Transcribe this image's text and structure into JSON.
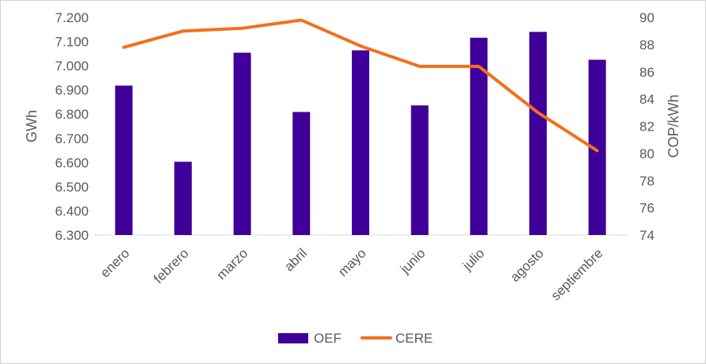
{
  "chart_data": {
    "type": "bar",
    "title": "",
    "categories": [
      "enero",
      "febrero",
      "marzo",
      "abril",
      "mayo",
      "junio",
      "julio",
      "agosto",
      "septiembre"
    ],
    "series": [
      {
        "name": "OEF",
        "type": "bar",
        "axis": "left",
        "color": "#3f0099",
        "values": [
          6.918,
          6.603,
          7.054,
          6.809,
          7.064,
          6.836,
          7.116,
          7.14,
          7.025
        ]
      },
      {
        "name": "CERE",
        "type": "line",
        "axis": "right",
        "color": "#f46f1b",
        "values": [
          87.8,
          89.0,
          89.2,
          89.8,
          87.9,
          86.4,
          86.4,
          83.0,
          80.2
        ]
      }
    ],
    "ylabel": "GWh",
    "ylim": [
      6.3,
      7.2
    ],
    "yticks": [
      "7.200",
      "7.100",
      "7.000",
      "6.900",
      "6.800",
      "6.700",
      "6.600",
      "6.500",
      "6.400",
      "6.300"
    ],
    "y2label": "COP/kWh",
    "y2lim": [
      74,
      90
    ],
    "y2ticks": [
      "90",
      "88",
      "86",
      "84",
      "82",
      "80",
      "78",
      "76",
      "74"
    ],
    "legend": {
      "position": "bottom",
      "items": [
        {
          "label": "OEF",
          "color": "#3f0099",
          "kind": "bar"
        },
        {
          "label": "CERE",
          "color": "#f46f1b",
          "kind": "line"
        }
      ]
    },
    "grid": false
  }
}
